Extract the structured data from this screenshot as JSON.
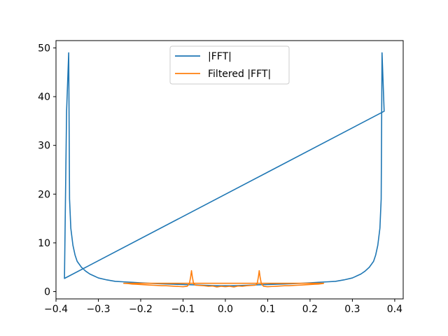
{
  "chart_data": {
    "type": "line",
    "title": "",
    "xlabel": "",
    "ylabel": "",
    "xlim": [
      -0.4,
      0.42
    ],
    "ylim": [
      -1.5,
      51.5
    ],
    "xticks": [
      -0.4,
      -0.3,
      -0.2,
      -0.1,
      0.0,
      0.1,
      0.2,
      0.3,
      0.4
    ],
    "xtick_labels": [
      "−0.4",
      "−0.3",
      "−0.2",
      "−0.1",
      "0.0",
      "0.1",
      "0.2",
      "0.3",
      "0.4"
    ],
    "yticks": [
      0,
      10,
      20,
      30,
      40,
      50
    ],
    "ytick_labels": [
      "0",
      "10",
      "20",
      "30",
      "40",
      "50"
    ],
    "grid": false,
    "legend": {
      "position": "upper center",
      "entries": [
        "|FFT|",
        "Filtered |FFT|"
      ]
    },
    "series": [
      {
        "name": "|FFT|",
        "color": "#1f77b4",
        "points": [
          [
            0.0,
            1.2
          ],
          [
            0.02,
            1.2
          ],
          [
            0.05,
            1.3
          ],
          [
            0.08,
            1.4
          ],
          [
            0.1,
            1.45
          ],
          [
            0.12,
            1.5
          ],
          [
            0.15,
            1.6
          ],
          [
            0.18,
            1.7
          ],
          [
            0.2,
            1.8
          ],
          [
            0.22,
            1.9
          ],
          [
            0.24,
            2.0
          ],
          [
            0.26,
            2.1
          ],
          [
            0.28,
            2.4
          ],
          [
            0.3,
            2.8
          ],
          [
            0.31,
            3.2
          ],
          [
            0.32,
            3.6
          ],
          [
            0.33,
            4.2
          ],
          [
            0.34,
            5.0
          ],
          [
            0.35,
            6.2
          ],
          [
            0.355,
            7.5
          ],
          [
            0.36,
            9.5
          ],
          [
            0.365,
            13.0
          ],
          [
            0.368,
            19.0
          ],
          [
            0.37,
            49.0
          ],
          [
            0.375,
            37.0
          ],
          [
            -0.38,
            2.7
          ],
          [
            -0.375,
            37.0
          ],
          [
            -0.37,
            49.0
          ],
          [
            -0.368,
            19.0
          ],
          [
            -0.365,
            13.0
          ],
          [
            -0.36,
            9.5
          ],
          [
            -0.355,
            7.5
          ],
          [
            -0.35,
            6.2
          ],
          [
            -0.34,
            5.0
          ],
          [
            -0.33,
            4.2
          ],
          [
            -0.32,
            3.6
          ],
          [
            -0.31,
            3.2
          ],
          [
            -0.3,
            2.8
          ],
          [
            -0.28,
            2.4
          ],
          [
            -0.26,
            2.1
          ],
          [
            -0.24,
            2.0
          ],
          [
            -0.22,
            1.9
          ],
          [
            -0.2,
            1.8
          ],
          [
            -0.18,
            1.7
          ],
          [
            -0.15,
            1.6
          ],
          [
            -0.12,
            1.5
          ],
          [
            -0.1,
            1.45
          ],
          [
            -0.08,
            1.4
          ],
          [
            -0.05,
            1.3
          ],
          [
            -0.02,
            1.2
          ],
          [
            0.0,
            1.2
          ]
        ]
      },
      {
        "name": "Filtered |FFT|",
        "color": "#ff7f0e",
        "points": [
          [
            0.0,
            1.0
          ],
          [
            0.01,
            1.1
          ],
          [
            0.02,
            0.95
          ],
          [
            0.03,
            1.15
          ],
          [
            0.04,
            1.1
          ],
          [
            0.05,
            1.2
          ],
          [
            0.06,
            1.25
          ],
          [
            0.07,
            1.3
          ],
          [
            0.075,
            1.6
          ],
          [
            0.078,
            3.0
          ],
          [
            0.08,
            4.3
          ],
          [
            0.082,
            3.0
          ],
          [
            0.085,
            1.6
          ],
          [
            0.09,
            1.1
          ],
          [
            0.1,
            1.0
          ],
          [
            0.11,
            1.05
          ],
          [
            0.12,
            1.1
          ],
          [
            0.13,
            1.15
          ],
          [
            0.14,
            1.2
          ],
          [
            0.15,
            1.2
          ],
          [
            0.16,
            1.25
          ],
          [
            0.17,
            1.3
          ],
          [
            0.18,
            1.35
          ],
          [
            0.19,
            1.4
          ],
          [
            0.2,
            1.45
          ],
          [
            0.21,
            1.5
          ],
          [
            0.22,
            1.55
          ],
          [
            0.23,
            1.65
          ],
          [
            0.232,
            1.7
          ],
          [
            -0.24,
            1.7
          ],
          [
            -0.23,
            1.65
          ],
          [
            -0.22,
            1.55
          ],
          [
            -0.21,
            1.5
          ],
          [
            -0.2,
            1.45
          ],
          [
            -0.19,
            1.4
          ],
          [
            -0.18,
            1.35
          ],
          [
            -0.17,
            1.3
          ],
          [
            -0.16,
            1.25
          ],
          [
            -0.15,
            1.2
          ],
          [
            -0.14,
            1.2
          ],
          [
            -0.13,
            1.15
          ],
          [
            -0.12,
            1.1
          ],
          [
            -0.11,
            1.05
          ],
          [
            -0.1,
            1.0
          ],
          [
            -0.09,
            1.1
          ],
          [
            -0.085,
            1.6
          ],
          [
            -0.082,
            3.0
          ],
          [
            -0.08,
            4.3
          ],
          [
            -0.078,
            3.0
          ],
          [
            -0.075,
            1.6
          ],
          [
            -0.07,
            1.3
          ],
          [
            -0.06,
            1.25
          ],
          [
            -0.05,
            1.2
          ],
          [
            -0.04,
            1.1
          ],
          [
            -0.03,
            1.15
          ],
          [
            -0.02,
            0.95
          ],
          [
            -0.01,
            1.1
          ],
          [
            0.0,
            1.0
          ]
        ]
      }
    ]
  }
}
